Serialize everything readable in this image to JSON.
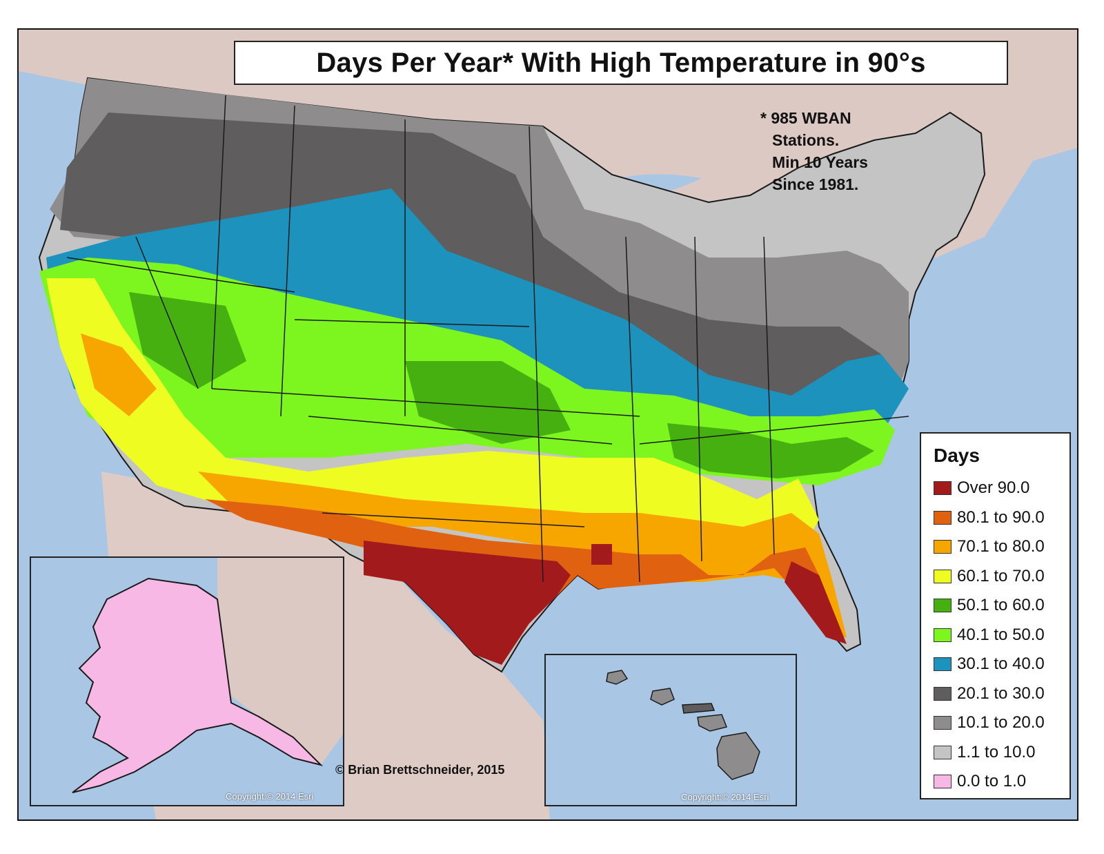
{
  "title": "Days Per Year* With High Temperature in 90°s",
  "footnote": [
    "* 985 WBAN",
    "Stations.",
    "Min 10 Years",
    "Since 1981."
  ],
  "credits": {
    "author": "© Brian Brettschneider, 2015",
    "esri_alaska": "Copyright:© 2014 Esri",
    "esri_hawaii": "Copyright:© 2014 Esri"
  },
  "legend": {
    "title": "Days",
    "items": [
      {
        "label": "Over 90.0",
        "color": "#a31a1c"
      },
      {
        "label": "80.1 to 90.0",
        "color": "#e0610f"
      },
      {
        "label": "70.1 to 80.0",
        "color": "#f7a600"
      },
      {
        "label": "60.1 to 70.0",
        "color": "#eefc22"
      },
      {
        "label": "50.1 to 60.0",
        "color": "#45b010"
      },
      {
        "label": "40.1 to 50.0",
        "color": "#7df51e"
      },
      {
        "label": "30.1 to 40.0",
        "color": "#1d92bd"
      },
      {
        "label": "20.1 to 30.0",
        "color": "#5f5d5d"
      },
      {
        "label": "10.1 to 20.0",
        "color": "#8e8c8c"
      },
      {
        "label": "1.1 to 10.0",
        "color": "#c5c4c4"
      },
      {
        "label": "0.0 to 1.0",
        "color": "#f8b8e6"
      }
    ]
  }
}
